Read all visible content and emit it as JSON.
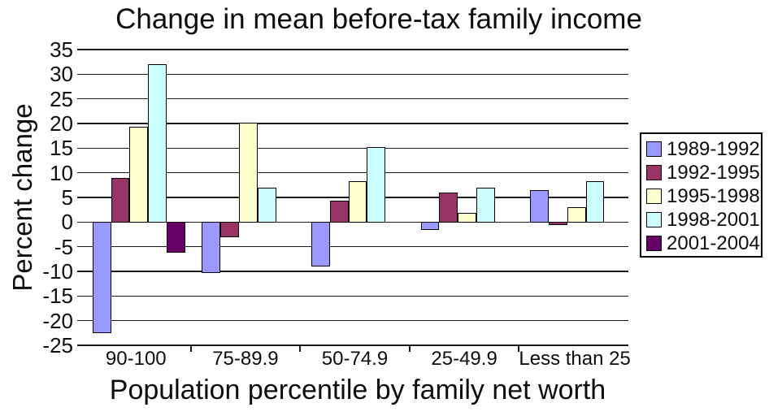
{
  "chart_data": {
    "type": "bar",
    "title": "Change in mean before-tax family income",
    "xlabel": "Population percentile by family net worth",
    "ylabel": "Percent change",
    "ylim": [
      -25,
      35
    ],
    "ytick_step": 5,
    "grid": true,
    "legend_position": "right",
    "categories": [
      "90-100",
      "75-89.9",
      "50-74.9",
      "25-49.9",
      "Less than 25"
    ],
    "series": [
      {
        "name": "1989-1992",
        "color": "#9999FF",
        "values": [
          -22.5,
          -10.3,
          -9,
          -1.5,
          6.5
        ]
      },
      {
        "name": "1992-1995",
        "color": "#993366",
        "values": [
          9,
          -3,
          4.3,
          6,
          -0.5
        ]
      },
      {
        "name": "1995-1998",
        "color": "#FFFFCC",
        "values": [
          19.3,
          20.2,
          8.3,
          1.8,
          3
        ]
      },
      {
        "name": "1998-2001",
        "color": "#CCFFFF",
        "values": [
          32.1,
          7,
          15.3,
          7,
          8.3
        ]
      },
      {
        "name": "2001-2004",
        "color": "#660066",
        "values": [
          -6.2,
          0,
          0,
          0,
          0
        ]
      }
    ],
    "bar_border_color": "#000000",
    "gridline_color": "#1a1a1a"
  }
}
